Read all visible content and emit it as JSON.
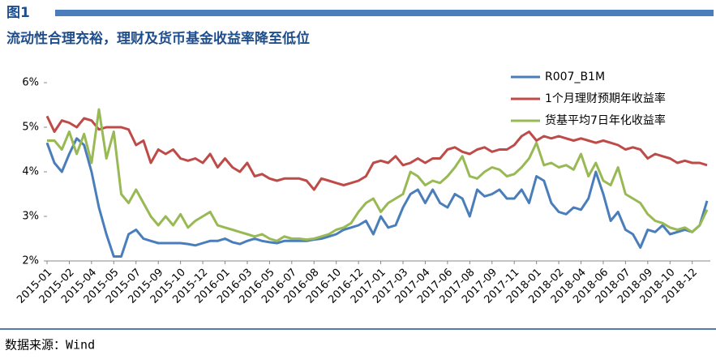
{
  "header": {
    "label": "图1"
  },
  "chart_data": {
    "type": "line",
    "title": "流动性合理充裕，理财及货币基金收益率降至低位",
    "categories": [
      "2015-01",
      null,
      null,
      "2015-02",
      null,
      null,
      "2015-04",
      null,
      null,
      "2015-05",
      null,
      null,
      "2015-07",
      null,
      null,
      "2015-09",
      null,
      null,
      "2015-10",
      null,
      null,
      "2015-12",
      null,
      null,
      "2016-01",
      null,
      null,
      "2016-03",
      null,
      null,
      "2016-05",
      null,
      null,
      "2016-07",
      null,
      null,
      "2016-08",
      null,
      null,
      "2016-10",
      null,
      null,
      "2016-12",
      null,
      null,
      "2017-01",
      null,
      null,
      "2017-03",
      null,
      null,
      "2017-04",
      null,
      null,
      "2017-06",
      null,
      null,
      "2017-08",
      null,
      null,
      "2017-09",
      null,
      null,
      "2017-11",
      null,
      null,
      "2018-01",
      null,
      null,
      "2018-02",
      null,
      null,
      "2018-04",
      null,
      null,
      "2018-06",
      null,
      null,
      "2018-07",
      null,
      null,
      "2018-09",
      null,
      null,
      "2018-10",
      null,
      null,
      "2018-12",
      null,
      null
    ],
    "series": [
      {
        "name": "R007_B1M",
        "color": "#4a7ebb",
        "values": [
          4.65,
          4.2,
          4.0,
          4.4,
          4.75,
          4.6,
          4.0,
          3.2,
          2.6,
          2.1,
          2.1,
          2.6,
          2.7,
          2.5,
          2.45,
          2.4,
          2.4,
          2.4,
          2.4,
          2.38,
          2.35,
          2.4,
          2.45,
          2.45,
          2.5,
          2.42,
          2.38,
          2.45,
          2.5,
          2.45,
          2.42,
          2.4,
          2.45,
          2.45,
          2.45,
          2.45,
          2.48,
          2.5,
          2.55,
          2.6,
          2.7,
          2.75,
          2.8,
          2.9,
          2.6,
          3.0,
          2.75,
          2.8,
          3.2,
          3.5,
          3.6,
          3.3,
          3.6,
          3.3,
          3.2,
          3.5,
          3.4,
          3.0,
          3.6,
          3.45,
          3.5,
          3.6,
          3.4,
          3.4,
          3.6,
          3.3,
          3.9,
          3.8,
          3.3,
          3.1,
          3.05,
          3.2,
          3.15,
          3.4,
          4.0,
          3.5,
          2.9,
          3.1,
          2.7,
          2.6,
          2.3,
          2.7,
          2.65,
          2.8,
          2.6,
          2.65,
          2.7,
          2.65,
          2.8,
          3.35
        ]
      },
      {
        "name": "1个月理财预期年收益率",
        "color": "#be4b48",
        "values": [
          5.25,
          4.9,
          5.15,
          5.1,
          5.0,
          5.2,
          5.15,
          4.95,
          5.0,
          5.0,
          5.0,
          4.95,
          4.6,
          4.7,
          4.2,
          4.5,
          4.4,
          4.5,
          4.3,
          4.25,
          4.3,
          4.2,
          4.4,
          4.1,
          4.3,
          4.1,
          4.0,
          4.2,
          3.9,
          3.95,
          3.85,
          3.8,
          3.85,
          3.85,
          3.85,
          3.8,
          3.6,
          3.85,
          3.8,
          3.75,
          3.7,
          3.75,
          3.8,
          3.9,
          4.2,
          4.25,
          4.2,
          4.35,
          4.15,
          4.2,
          4.3,
          4.2,
          4.3,
          4.3,
          4.5,
          4.55,
          4.45,
          4.4,
          4.5,
          4.55,
          4.45,
          4.5,
          4.5,
          4.6,
          4.8,
          4.9,
          4.7,
          4.8,
          4.75,
          4.8,
          4.75,
          4.7,
          4.75,
          4.7,
          4.65,
          4.7,
          4.65,
          4.6,
          4.5,
          4.55,
          4.5,
          4.3,
          4.4,
          4.35,
          4.3,
          4.2,
          4.25,
          4.2,
          4.2,
          4.15
        ]
      },
      {
        "name": "货基平均7日年化收益率",
        "color": "#98b954",
        "values": [
          4.7,
          4.7,
          4.5,
          4.9,
          4.4,
          4.85,
          4.2,
          5.4,
          4.3,
          4.9,
          3.5,
          3.3,
          3.6,
          3.3,
          3.0,
          2.8,
          3.0,
          2.8,
          3.05,
          2.75,
          2.9,
          3.0,
          3.1,
          2.8,
          2.75,
          2.7,
          2.65,
          2.6,
          2.55,
          2.6,
          2.5,
          2.45,
          2.55,
          2.5,
          2.5,
          2.48,
          2.5,
          2.55,
          2.6,
          2.7,
          2.75,
          2.85,
          3.1,
          3.3,
          3.4,
          3.1,
          3.3,
          3.4,
          3.5,
          4.0,
          3.9,
          3.7,
          3.8,
          3.75,
          3.9,
          4.1,
          4.35,
          3.9,
          3.85,
          4.0,
          4.1,
          4.05,
          3.9,
          3.95,
          4.1,
          4.3,
          4.65,
          4.15,
          4.2,
          4.1,
          4.15,
          4.05,
          4.4,
          3.9,
          4.2,
          3.8,
          3.7,
          4.1,
          3.5,
          3.4,
          3.3,
          3.05,
          2.9,
          2.85,
          2.75,
          2.7,
          2.75,
          2.65,
          2.8,
          3.15
        ]
      }
    ],
    "ylim": [
      2,
      6
    ],
    "yticks": [
      {
        "value": 2,
        "label": "2%"
      },
      {
        "value": 3,
        "label": "3%"
      },
      {
        "value": 4,
        "label": "4%"
      },
      {
        "value": 5,
        "label": "5%"
      },
      {
        "value": 6,
        "label": "6%"
      }
    ],
    "grid": false,
    "legend": "top-right"
  },
  "footer": {
    "source": "数据来源：Wind"
  }
}
